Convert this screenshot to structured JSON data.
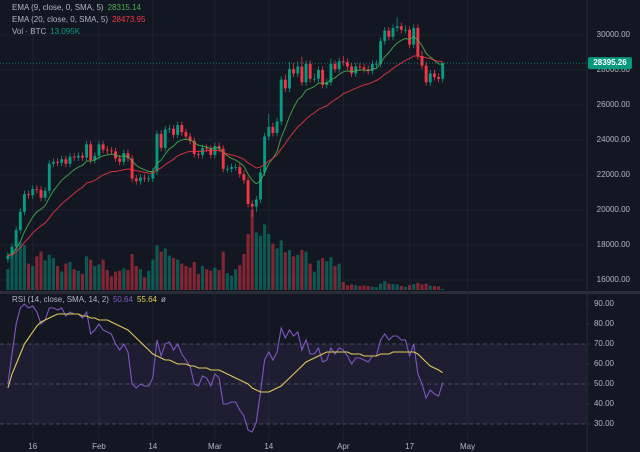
{
  "chart_data": [
    {
      "type": "candlestick",
      "up_color": "#089981",
      "down_color": "#f23645",
      "open": [
        17200,
        17400,
        17900,
        18850,
        19900,
        20900,
        20850,
        21200,
        21150,
        20700,
        21100,
        22650,
        22750,
        22700,
        22900,
        22650,
        23050,
        23000,
        23100,
        23000,
        23750,
        22850,
        23100,
        23750,
        23450,
        23400,
        23350,
        22950,
        22750,
        23250,
        22950,
        21800,
        21650,
        21850,
        21800,
        21800,
        22200,
        24350,
        23550,
        24600,
        24650,
        24300,
        24850,
        24450,
        24200,
        23950,
        23200,
        23150,
        23550,
        23500,
        23150,
        23650,
        23500,
        22350,
        22350,
        22450,
        22450,
        22050,
        21700,
        20350,
        20200,
        20600,
        22150,
        24200,
        24750,
        24400,
        25050,
        27450,
        26950,
        28050,
        27800,
        28200,
        27300,
        28350,
        27500,
        27500,
        28000,
        27150,
        27300,
        28350,
        28050,
        28500,
        28450,
        28200,
        27800,
        28200,
        28150,
        28050,
        27950,
        28350,
        28350,
        29650,
        30250,
        29900,
        30400,
        30500,
        30300,
        30300,
        29450,
        30400,
        28800,
        28250,
        27300,
        27800,
        27600,
        27500
      ],
      "high": [
        17600,
        18100,
        19050,
        20100,
        21100,
        21100,
        21400,
        21400,
        21350,
        21300,
        22850,
        22950,
        22950,
        23100,
        23100,
        23250,
        23250,
        23300,
        23300,
        23950,
        23950,
        23300,
        23950,
        23950,
        23650,
        23600,
        23550,
        23150,
        23450,
        23450,
        23150,
        22000,
        22050,
        22050,
        22000,
        22400,
        24550,
        24550,
        24800,
        24850,
        24850,
        25050,
        25050,
        24650,
        24400,
        24150,
        23400,
        23750,
        23750,
        23700,
        23850,
        23850,
        23700,
        22550,
        22650,
        22650,
        22650,
        22250,
        21900,
        20550,
        20800,
        22350,
        24400,
        25500,
        25000,
        25250,
        27650,
        27750,
        28450,
        28400,
        28500,
        28750,
        28550,
        28550,
        27800,
        28200,
        28200,
        27500,
        28650,
        28550,
        28700,
        28800,
        28650,
        28400,
        28400,
        28400,
        28350,
        28250,
        28550,
        28550,
        29850,
        30450,
        30450,
        30600,
        31000,
        30700,
        30550,
        30500,
        30600,
        30600,
        29100,
        28450,
        28000,
        28000,
        27800,
        28450
      ],
      "low": [
        17000,
        17200,
        17700,
        18650,
        19700,
        20650,
        20650,
        20950,
        20500,
        20500,
        20900,
        22450,
        22500,
        22500,
        22450,
        22450,
        22800,
        22800,
        22800,
        22800,
        22650,
        22650,
        22900,
        23250,
        23200,
        23150,
        22750,
        22550,
        22550,
        22750,
        21600,
        21450,
        21450,
        21600,
        21600,
        21600,
        22000,
        23350,
        23350,
        24400,
        24100,
        24100,
        24250,
        24000,
        23750,
        23000,
        22950,
        22950,
        23300,
        22950,
        22950,
        23300,
        22150,
        22150,
        22150,
        22250,
        21850,
        21500,
        20150,
        19600,
        19900,
        20400,
        21950,
        24000,
        24200,
        24200,
        24850,
        26750,
        26750,
        27600,
        27600,
        27100,
        27100,
        27300,
        27300,
        27300,
        26950,
        26950,
        27100,
        27850,
        27850,
        28250,
        28000,
        27600,
        27600,
        27950,
        27850,
        27750,
        27750,
        28150,
        28150,
        29450,
        29700,
        29700,
        30200,
        30100,
        30100,
        29250,
        29250,
        28600,
        28050,
        27100,
        27100,
        27400,
        27300,
        27300
      ],
      "close": [
        17400,
        17900,
        18850,
        19900,
        20900,
        20850,
        21200,
        21150,
        20700,
        21100,
        22650,
        22750,
        22700,
        22900,
        22650,
        23050,
        23000,
        23100,
        23000,
        23750,
        22850,
        23100,
        23750,
        23450,
        23400,
        23350,
        22950,
        22750,
        23250,
        22950,
        21800,
        21650,
        21850,
        21800,
        21800,
        22200,
        24350,
        23550,
        24600,
        24650,
        24300,
        24850,
        24450,
        24200,
        23950,
        23200,
        23150,
        23550,
        23500,
        23150,
        23650,
        23500,
        22350,
        22350,
        22450,
        22450,
        22050,
        21700,
        20350,
        20200,
        20600,
        22150,
        24200,
        24750,
        24400,
        25050,
        27450,
        26950,
        28050,
        27800,
        28200,
        27300,
        28350,
        27500,
        27500,
        28000,
        27150,
        27300,
        28350,
        28050,
        28500,
        28450,
        28200,
        27800,
        28200,
        28150,
        28050,
        27950,
        28350,
        28350,
        29650,
        30250,
        29900,
        30400,
        30500,
        30300,
        30300,
        29450,
        30400,
        28800,
        28250,
        27300,
        27800,
        27600,
        27500,
        28395.26
      ],
      "overlays": [
        {
          "name": "EMA (9, close, 0, SMA, 5)",
          "color": "#4caf50",
          "values": [
            17400,
            17500,
            17800,
            18200,
            18750,
            19200,
            19600,
            19900,
            20050,
            20250,
            20700,
            21100,
            21400,
            21700,
            21900,
            22100,
            22300,
            22450,
            22550,
            22800,
            22800,
            22850,
            23000,
            23100,
            23150,
            23200,
            23150,
            23050,
            23100,
            23050,
            22800,
            22550,
            22400,
            22300,
            22200,
            22200,
            22650,
            22850,
            23200,
            23500,
            23650,
            23900,
            24000,
            24050,
            24000,
            23850,
            23700,
            23650,
            23600,
            23500,
            23550,
            23550,
            23300,
            23100,
            22950,
            22850,
            22700,
            22500,
            22050,
            21700,
            21500,
            21650,
            22150,
            22650,
            22950,
            23350,
            24150,
            24700,
            25350,
            25850,
            26300,
            26500,
            26850,
            26950,
            27050,
            27250,
            27250,
            27250,
            27450,
            27550,
            27750,
            27900,
            27950,
            27900,
            27950,
            28000,
            28000,
            27950,
            28050,
            28100,
            28400,
            28750,
            29000,
            29300,
            29550,
            29700,
            29800,
            29750,
            29900,
            29700,
            29400,
            28950,
            28750,
            28550,
            28350,
            28315.14
          ]
        },
        {
          "name": "EMA (20, close, 0, SMA, 5)",
          "color": "#f23645",
          "values": [
            17400,
            17450,
            17600,
            17850,
            18150,
            18400,
            18700,
            18900,
            19100,
            19250,
            19550,
            19850,
            20100,
            20350,
            20550,
            20750,
            20950,
            21150,
            21300,
            21550,
            21600,
            21700,
            21850,
            22000,
            22100,
            22200,
            22200,
            22250,
            22300,
            22350,
            22300,
            22250,
            22200,
            22150,
            22100,
            22100,
            22300,
            22400,
            22600,
            22750,
            22900,
            23100,
            23200,
            23300,
            23350,
            23350,
            23350,
            23350,
            23400,
            23400,
            23400,
            23400,
            23300,
            23200,
            23150,
            23100,
            23000,
            22900,
            22700,
            22550,
            22400,
            22450,
            22600,
            22800,
            22950,
            23150,
            23500,
            23800,
            24150,
            24450,
            24750,
            24950,
            25200,
            25400,
            25550,
            25750,
            25850,
            25950,
            26150,
            26300,
            26450,
            26650,
            26750,
            26850,
            26950,
            27050,
            27150,
            27200,
            27300,
            27400,
            27550,
            27750,
            27900,
            28100,
            28250,
            28400,
            28550,
            28650,
            28800,
            28800,
            28750,
            28700,
            28650,
            28550,
            28500,
            28473.95
          ]
        }
      ],
      "volume": {
        "name": "Vol · BTC",
        "last_value_label": "13.095K",
        "values": [
          260,
          430,
          520,
          600,
          560,
          330,
          300,
          420,
          480,
          370,
          440,
          400,
          300,
          230,
          330,
          350,
          260,
          240,
          200,
          420,
          380,
          300,
          320,
          380,
          250,
          170,
          230,
          240,
          270,
          250,
          450,
          300,
          260,
          160,
          240,
          380,
          560,
          480,
          520,
          430,
          400,
          380,
          330,
          300,
          280,
          350,
          200,
          300,
          260,
          240,
          280,
          250,
          480,
          210,
          180,
          260,
          310,
          450,
          700,
          1000,
          720,
          680,
          820,
          700,
          580,
          520,
          620,
          470,
          500,
          420,
          440,
          500,
          480,
          330,
          230,
          370,
          400,
          360,
          410,
          300,
          330,
          100,
          60,
          70,
          60,
          50,
          55,
          50,
          40,
          35,
          80,
          110,
          80,
          75,
          70,
          50,
          40,
          60,
          75,
          90,
          70,
          80,
          55,
          50,
          45,
          13.095
        ]
      },
      "ylim": [
        15430,
        32000
      ],
      "yticks": [
        {
          "value": 16000,
          "label": "16000.00"
        },
        {
          "value": 18000,
          "label": "18000.00"
        },
        {
          "value": 20000,
          "label": "20000.00"
        },
        {
          "value": 22000,
          "label": "22000.00"
        },
        {
          "value": 24000,
          "label": "24000.00"
        },
        {
          "value": 26000,
          "label": "26000.00"
        },
        {
          "value": 28000,
          "label": "28000.00"
        },
        {
          "value": 30000,
          "label": "30000.00"
        }
      ],
      "grid": true
    },
    {
      "type": "line",
      "legend_suffix": "ø",
      "series": [
        {
          "name": "RSI (14, close, SMA, 14, 2)",
          "color": "#7e57c2",
          "values": [
            50,
            65,
            80,
            88,
            90,
            88,
            89,
            86,
            80,
            82,
            88,
            88,
            87,
            88,
            84,
            86,
            85,
            85,
            83,
            86,
            75,
            77,
            80,
            77,
            76,
            75,
            70,
            67,
            70,
            66,
            50,
            48,
            50,
            49,
            49,
            53,
            72,
            64,
            70,
            71,
            67,
            70,
            65,
            62,
            59,
            50,
            49,
            54,
            53,
            49,
            55,
            53,
            40,
            40,
            41,
            41,
            37,
            34,
            27,
            26,
            31,
            46,
            62,
            66,
            62,
            66,
            78,
            73,
            77,
            74,
            76,
            67,
            72,
            65,
            65,
            68,
            61,
            62,
            68,
            65,
            68,
            67,
            64,
            60,
            63,
            63,
            62,
            61,
            64,
            64,
            72,
            75,
            72,
            74,
            74,
            72,
            72,
            64,
            70,
            55,
            50,
            43,
            47,
            45,
            44,
            50.64
          ]
        },
        {
          "color": "#e0ca55",
          "values": [
            48,
            55,
            60,
            65,
            70,
            73,
            76,
            79,
            81,
            82,
            83,
            84,
            85,
            85,
            85,
            85,
            85,
            85,
            84,
            84,
            83,
            83,
            82,
            82,
            82,
            81,
            80,
            79,
            78,
            77,
            75,
            73,
            71,
            69,
            67,
            65,
            64,
            63,
            62,
            62,
            61,
            60,
            60,
            60,
            59,
            59,
            58,
            58,
            58,
            57,
            57,
            57,
            56,
            55,
            54,
            53,
            52,
            51,
            50,
            48,
            47,
            46,
            46,
            46,
            47,
            48,
            49,
            51,
            53,
            55,
            57,
            59,
            61,
            62,
            63,
            64,
            65,
            66,
            66,
            66,
            66,
            66,
            66,
            65,
            65,
            65,
            64,
            64,
            64,
            64,
            65,
            65,
            65,
            66,
            66,
            66,
            66,
            66,
            66,
            65,
            63,
            61,
            59,
            58,
            57,
            55.64
          ]
        }
      ],
      "levels": [
        70,
        50,
        30
      ],
      "band": [
        30,
        70
      ],
      "ylim": [
        22,
        94
      ],
      "yticks": [
        {
          "value": 30,
          "label": "30.00"
        },
        {
          "value": 40,
          "label": "40.00"
        },
        {
          "value": 50,
          "label": "50.00"
        },
        {
          "value": 60,
          "label": "60.00"
        },
        {
          "value": 70,
          "label": "70.00"
        },
        {
          "value": 80,
          "label": "80.00"
        },
        {
          "value": 90,
          "label": "90.00"
        }
      ],
      "xlim": [
        -1.9,
        139.6
      ],
      "xticks": [
        {
          "value": 6,
          "label": "16"
        },
        {
          "value": 22,
          "label": "Feb"
        },
        {
          "value": 35,
          "label": "14"
        },
        {
          "value": 50,
          "label": "Mar"
        },
        {
          "value": 63,
          "label": "14"
        },
        {
          "value": 81,
          "label": "Apr"
        },
        {
          "value": 97,
          "label": "17"
        },
        {
          "value": 111,
          "label": "May"
        }
      ]
    }
  ]
}
